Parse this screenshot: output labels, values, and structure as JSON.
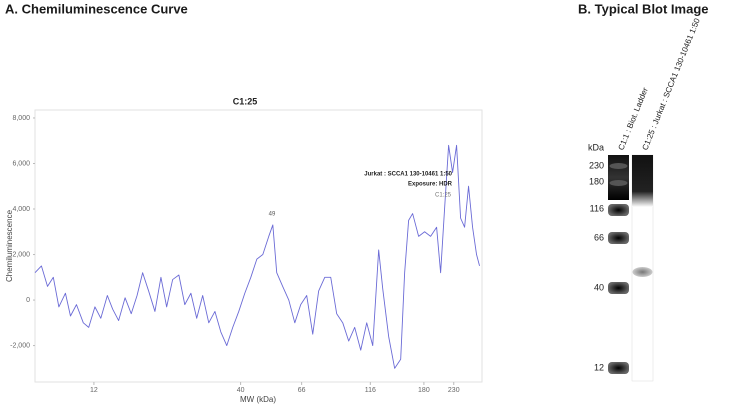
{
  "chart_data": {
    "type": "line",
    "heading": "A. Chemiluminescence Curve",
    "title": "C1:25",
    "x_label": "MW (kDa)",
    "y_label": "Chemiluminescence",
    "color": "#6b6bd6",
    "xscale": "log",
    "grid": false,
    "xlim": [
      7.4,
      290
    ],
    "xticks": [
      12,
      40,
      66,
      116,
      180,
      230
    ],
    "ylim": [
      -3600,
      8350
    ],
    "yticks": [
      {
        "value": -2000,
        "label": "-2,000"
      },
      0,
      {
        "value": 2000,
        "label": "2,000"
      },
      {
        "value": 4000,
        "label": "4,000"
      },
      {
        "value": 6000,
        "label": "6,000"
      },
      {
        "value": 8000,
        "label": "8,000"
      }
    ],
    "annotations": [
      "Jurkat : SCCA1 130-10461 1:50",
      "Exposure: HDR",
      "49",
      "C1:25"
    ],
    "x": [
      7.4,
      7.8,
      8.2,
      8.6,
      9.0,
      9.5,
      9.9,
      10.4,
      11.0,
      11.5,
      12.1,
      12.7,
      13.4,
      14.0,
      14.7,
      15.5,
      16.3,
      17.1,
      17.9,
      18.8,
      19.8,
      20.8,
      21.8,
      22.9,
      24.1,
      25.3,
      26.6,
      27.9,
      29.3,
      30.8,
      32.4,
      34.0,
      35.7,
      37.5,
      39.4,
      41.4,
      43.5,
      45.7,
      48.0,
      50.4,
      52.1,
      53.8,
      56.5,
      59.4,
      62.4,
      65.5,
      68.8,
      72.3,
      75.9,
      79.8,
      83.8,
      88.0,
      92.5,
      97.1,
      102.0,
      107.2,
      112.6,
      118.3,
      124.2,
      128.4,
      134.8,
      141.6,
      148.8,
      153.7,
      158.8,
      164.1,
      172.4,
      181.1,
      190.2,
      199.8,
      206.5,
      213.3,
      220.5,
      227.8,
      235.4,
      243.3,
      251.4,
      259.7,
      268.4,
      277.3,
      284.2
    ],
    "values": [
      1200,
      1500,
      600,
      1000,
      -300,
      300,
      -700,
      -200,
      -1000,
      -1200,
      -300,
      -800,
      200,
      -400,
      -900,
      100,
      -600,
      200,
      1200,
      400,
      -500,
      1000,
      -300,
      900,
      1100,
      -200,
      300,
      -800,
      200,
      -1000,
      -500,
      -1400,
      -2000,
      -1200,
      -500,
      300,
      1000,
      1800,
      2000,
      2800,
      3300,
      1200,
      600,
      0,
      -1000,
      -200,
      200,
      -1500,
      400,
      1000,
      1000,
      -600,
      -1000,
      -1800,
      -1200,
      -2200,
      -1000,
      -2000,
      2200,
      500,
      -1600,
      -3000,
      -2600,
      1200,
      3500,
      3800,
      2800,
      3000,
      2800,
      3200,
      1200,
      4000,
      6800,
      5600,
      6800,
      3600,
      3200,
      5000,
      3200,
      2000,
      1500
    ]
  },
  "blot": {
    "heading": "B. Typical Blot Image",
    "unit_label": "kDa",
    "mw_labels": [
      "230",
      "180",
      "116",
      "66",
      "40",
      "12"
    ],
    "lanes": [
      "C1:1 : Biot. Ladder",
      "C1:25 : Jurkat : SCCA1 130-10461 1:50"
    ]
  }
}
